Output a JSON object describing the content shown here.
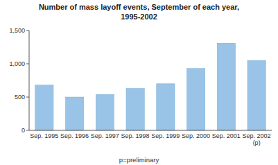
{
  "chart_data": {
    "type": "bar",
    "title": "Number of mass layoff events, September of each year,\n1995-2002",
    "categories": [
      "Sep. 1995",
      "Sep. 1996",
      "Sep. 1997",
      "Sep. 1998",
      "Sep. 1999",
      "Sep. 2000",
      "Sep. 2001",
      "Sep. 2002\n(p)"
    ],
    "values": [
      680,
      500,
      540,
      630,
      700,
      930,
      1310,
      1050
    ],
    "color": "#99c4e8",
    "ylim": [
      0,
      1500
    ],
    "yticks": [
      0,
      500,
      {
        "value": 1000,
        "label": "1,000"
      },
      {
        "value": 1500,
        "label": "1,500"
      }
    ],
    "grid": false,
    "footnote": "p=preliminary"
  }
}
